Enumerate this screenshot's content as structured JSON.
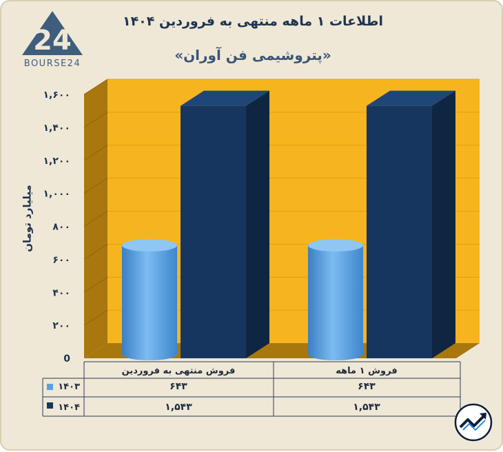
{
  "title": "اطلاعات ۱ ماهه منتهی به فروردین ۱۴۰۴",
  "subtitle": "«پتروشیمی فن آوران»",
  "logo_text": "BOURSE24",
  "logo_mark": "24",
  "colors": {
    "background": "#efe8d6",
    "wall": "#f6b41e",
    "wall_side": "#a8780f",
    "floor": "#a8780f",
    "series_1403": "#5aa0e0",
    "series_1404": "#17365f"
  },
  "chart_data": {
    "type": "bar",
    "ylabel": "میلیارد تومان",
    "ylim": [
      0,
      1600
    ],
    "yticks": [
      "0",
      "۲۰۰",
      "۴۰۰",
      "۶۰۰",
      "۸۰۰",
      "۱,۰۰۰",
      "۱,۲۰۰",
      "۱,۴۰۰",
      "۱,۶۰۰"
    ],
    "categories": [
      "فروش منتهی به  فروردین",
      "فروش ۱ ماهه"
    ],
    "series": [
      {
        "name": "۱۴۰۳",
        "values": [
          643,
          643
        ],
        "labels": [
          "۶۴۳",
          "۶۴۳"
        ],
        "color": "#5aa0e0",
        "shape": "cylinder"
      },
      {
        "name": "۱۴۰۴",
        "values": [
          1543,
          1543
        ],
        "labels": [
          "۱,۵۴۳",
          "۱,۵۴۳"
        ],
        "color": "#17365f",
        "shape": "box"
      }
    ]
  }
}
